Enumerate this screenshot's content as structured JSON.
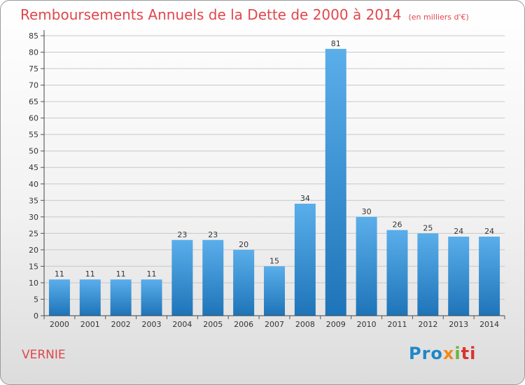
{
  "title": "Remboursements Annuels de la Dette de 2000 à 2014",
  "unit": "(en milliers d'€)",
  "town": "VERNIE",
  "logo": {
    "parts": [
      "Pro",
      "x",
      "i",
      "ti"
    ],
    "colors": [
      "#1e88c7",
      "#f08a1c",
      "#6db33f",
      "#d9332e"
    ]
  },
  "colors": {
    "bar_top": "#5aaeea",
    "bar_bottom": "#1e74b8",
    "title": "#e0474c"
  },
  "chart_data": {
    "type": "bar",
    "categories": [
      "2000",
      "2001",
      "2002",
      "2003",
      "2004",
      "2005",
      "2006",
      "2007",
      "2008",
      "2009",
      "2010",
      "2011",
      "2012",
      "2013",
      "2014"
    ],
    "values": [
      11,
      11,
      11,
      11,
      23,
      23,
      20,
      15,
      34,
      81,
      30,
      26,
      25,
      24,
      24
    ],
    "title": "Remboursements Annuels de la Dette de 2000 à 2014",
    "subtitle": "(en milliers d'€)",
    "xlabel": "",
    "ylabel": "",
    "ylim": [
      0,
      85
    ],
    "yticks": [
      0,
      5,
      10,
      15,
      20,
      25,
      30,
      35,
      40,
      45,
      50,
      55,
      60,
      65,
      70,
      75,
      80,
      85
    ],
    "grid": true,
    "legend": "none"
  }
}
